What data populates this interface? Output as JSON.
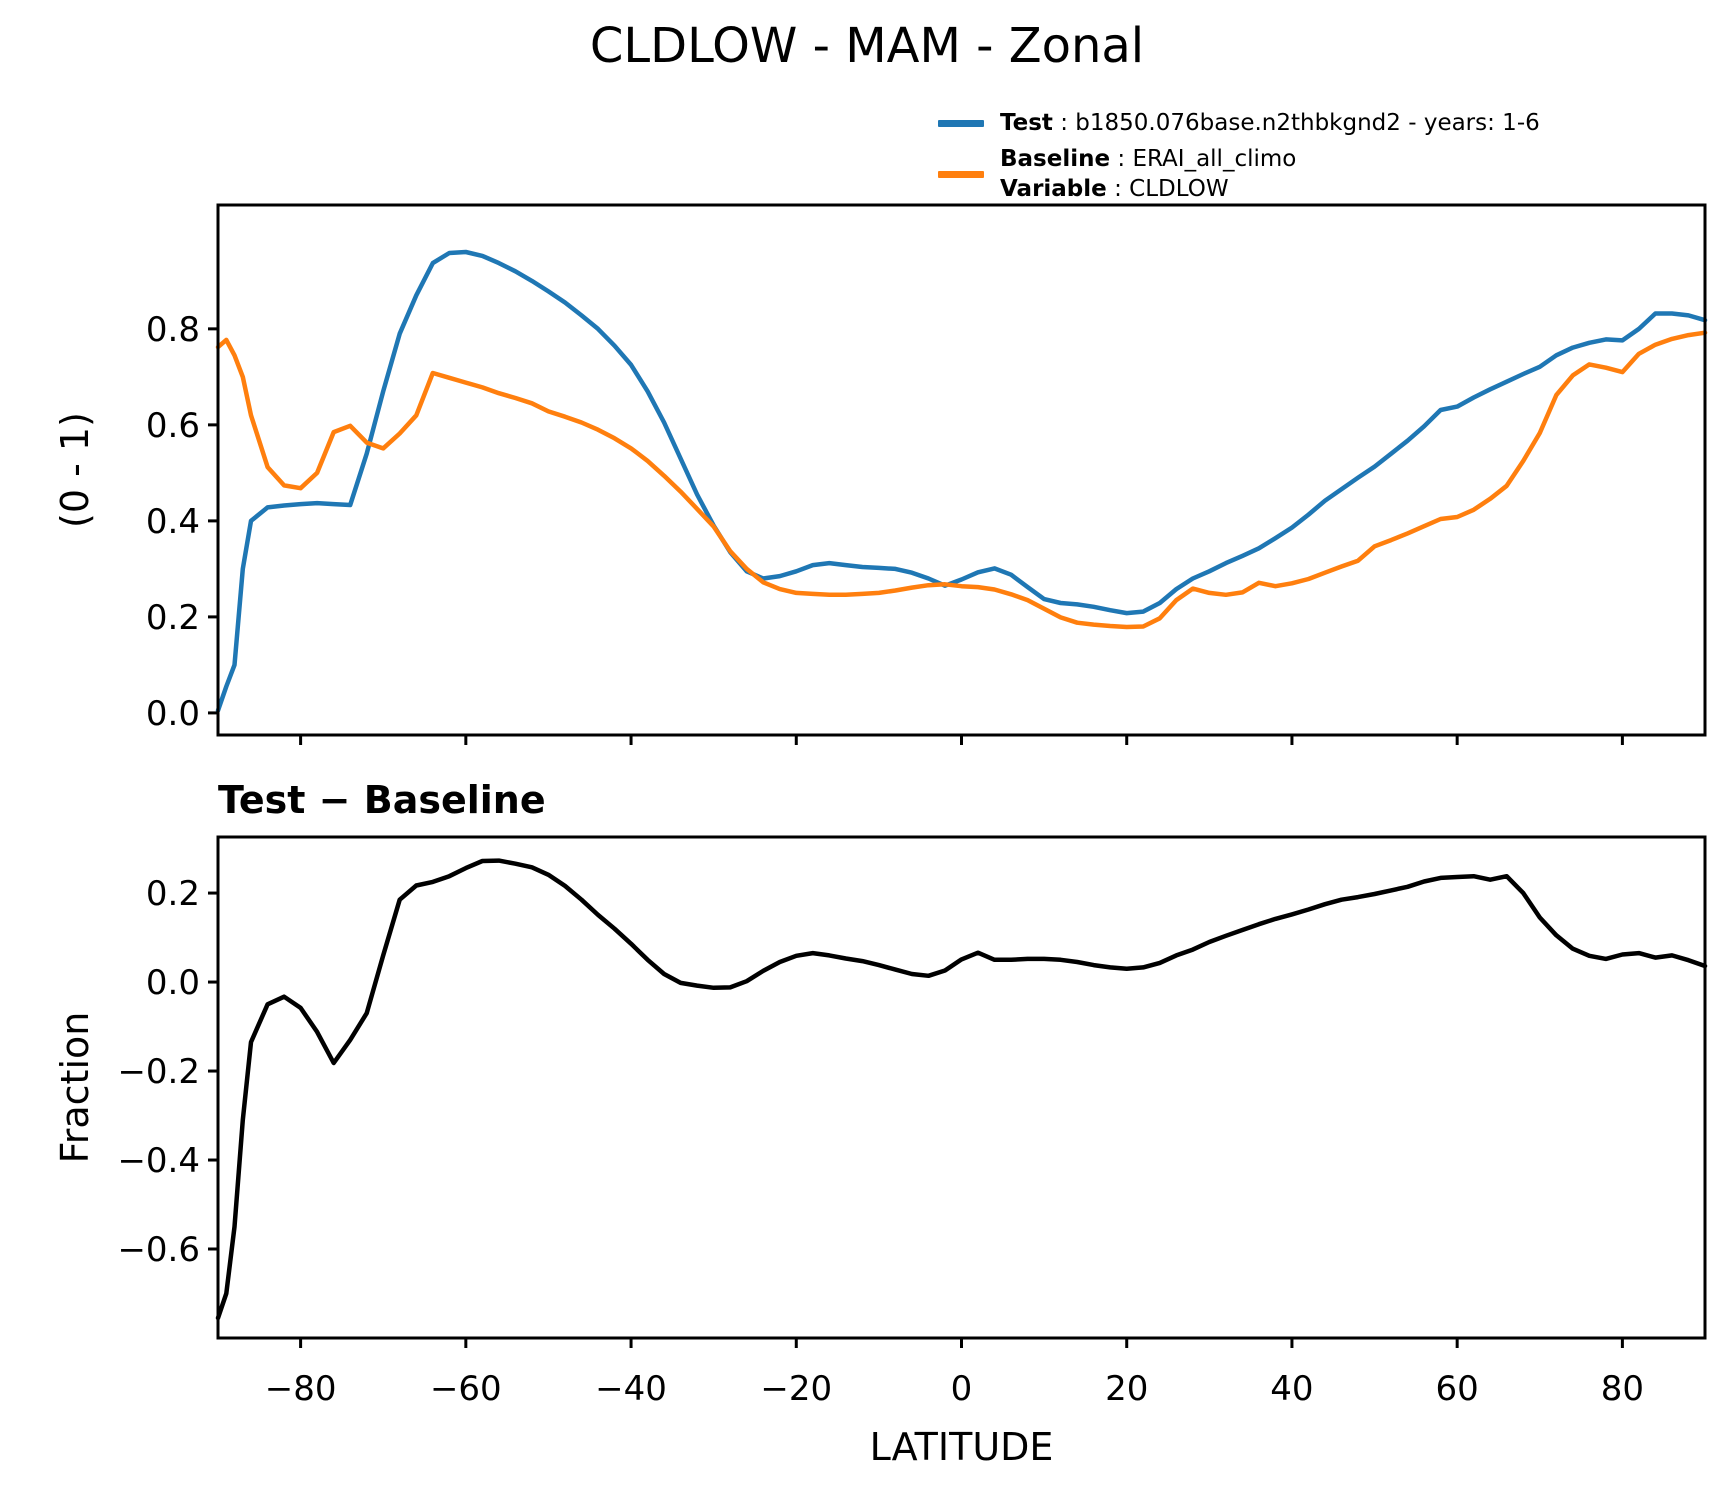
{
  "title": "CLDLOW - MAM - Zonal",
  "legend": {
    "position": "top-right",
    "entries": [
      {
        "label": "Test",
        "value": " : b1850.076base.n2thbkgnd2 - years: 1-6",
        "color": "#1f77b4"
      },
      {
        "label": "Baseline",
        "value": " : ERAI_all_climo",
        "color": "#ff7f0e"
      },
      {
        "label": "Variable",
        "value": " : CLDLOW"
      }
    ]
  },
  "chart_data": [
    {
      "type": "line",
      "name": "zonal-mean",
      "title": "",
      "xlabel": "",
      "ylabel": "(0 - 1)",
      "xlim": [
        -90,
        90
      ],
      "ylim": [
        -0.046,
        1.058
      ],
      "grid": false,
      "xticks": {
        "values": [
          -80,
          -60,
          -40,
          -20,
          0,
          20,
          40,
          60,
          80
        ],
        "labels": []
      },
      "yticks": {
        "values": [
          0.0,
          0.2,
          0.4,
          0.6,
          0.8
        ],
        "labels": [
          "0.0",
          "0.2",
          "0.4",
          "0.6",
          "0.8"
        ]
      },
      "x": [
        -90,
        -89,
        -88,
        -87,
        -86,
        -84,
        -82,
        -80,
        -78,
        -76,
        -74,
        -72,
        -70,
        -68,
        -66,
        -64,
        -62,
        -60,
        -58,
        -56,
        -54,
        -52,
        -50,
        -48,
        -46,
        -44,
        -42,
        -40,
        -38,
        -36,
        -34,
        -32,
        -30,
        -28,
        -26,
        -24,
        -22,
        -20,
        -18,
        -16,
        -14,
        -12,
        -10,
        -8,
        -6,
        -4,
        -2,
        0,
        2,
        4,
        6,
        8,
        10,
        12,
        14,
        16,
        18,
        20,
        22,
        24,
        26,
        28,
        30,
        32,
        34,
        36,
        38,
        40,
        42,
        44,
        46,
        48,
        50,
        52,
        54,
        56,
        58,
        60,
        62,
        64,
        66,
        68,
        70,
        72,
        74,
        76,
        78,
        80,
        82,
        84,
        86,
        88,
        90
      ],
      "series": [
        {
          "name": "Test",
          "color": "#1f77b4",
          "values": [
            0.005,
            0.055,
            0.1,
            0.3,
            0.4,
            0.428,
            0.432,
            0.435,
            0.437,
            0.435,
            0.433,
            0.54,
            0.67,
            0.79,
            0.87,
            0.937,
            0.958,
            0.96,
            0.952,
            0.937,
            0.92,
            0.9,
            0.878,
            0.855,
            0.828,
            0.8,
            0.765,
            0.725,
            0.67,
            0.605,
            0.53,
            0.455,
            0.39,
            0.335,
            0.295,
            0.28,
            0.285,
            0.295,
            0.308,
            0.312,
            0.308,
            0.304,
            0.302,
            0.3,
            0.292,
            0.28,
            0.265,
            0.278,
            0.293,
            0.301,
            0.288,
            0.262,
            0.237,
            0.229,
            0.226,
            0.221,
            0.214,
            0.208,
            0.211,
            0.229,
            0.258,
            0.28,
            0.295,
            0.312,
            0.327,
            0.343,
            0.364,
            0.386,
            0.413,
            0.442,
            0.466,
            0.49,
            0.513,
            0.54,
            0.567,
            0.597,
            0.631,
            0.638,
            0.657,
            0.674,
            0.69,
            0.706,
            0.721,
            0.745,
            0.761,
            0.771,
            0.778,
            0.776,
            0.8,
            0.832,
            0.832,
            0.828,
            0.818
          ]
        },
        {
          "name": "Baseline",
          "color": "#ff7f0e",
          "values": [
            0.762,
            0.777,
            0.745,
            0.7,
            0.62,
            0.512,
            0.474,
            0.468,
            0.5,
            0.585,
            0.598,
            0.563,
            0.551,
            0.582,
            0.62,
            0.708,
            0.698,
            0.688,
            0.678,
            0.666,
            0.656,
            0.645,
            0.628,
            0.617,
            0.605,
            0.59,
            0.572,
            0.551,
            0.525,
            0.494,
            0.461,
            0.425,
            0.388,
            0.337,
            0.3,
            0.272,
            0.258,
            0.25,
            0.248,
            0.246,
            0.246,
            0.248,
            0.25,
            0.255,
            0.261,
            0.266,
            0.268,
            0.264,
            0.262,
            0.257,
            0.247,
            0.235,
            0.217,
            0.199,
            0.188,
            0.184,
            0.181,
            0.179,
            0.18,
            0.197,
            0.235,
            0.259,
            0.25,
            0.246,
            0.251,
            0.271,
            0.264,
            0.27,
            0.279,
            0.292,
            0.305,
            0.317,
            0.347,
            0.36,
            0.374,
            0.389,
            0.404,
            0.408,
            0.423,
            0.446,
            0.473,
            0.525,
            0.583,
            0.662,
            0.703,
            0.726,
            0.719,
            0.71,
            0.748,
            0.767,
            0.779,
            0.787,
            0.792
          ]
        }
      ]
    },
    {
      "type": "line",
      "name": "difference",
      "title": "Test − Baseline",
      "xlabel": "LATITUDE",
      "ylabel": "Fraction",
      "xlim": [
        -90,
        90
      ],
      "ylim": [
        -0.8,
        0.326
      ],
      "grid": false,
      "xticks": {
        "values": [
          -80,
          -60,
          -40,
          -20,
          0,
          20,
          40,
          60,
          80
        ],
        "labels": [
          "−80",
          "−60",
          "−40",
          "−20",
          "0",
          "20",
          "40",
          "60",
          "80"
        ]
      },
      "yticks": {
        "values": [
          0.2,
          0.0,
          -0.2,
          -0.4,
          -0.6
        ],
        "labels": [
          "0.2",
          "0.0",
          "−0.2",
          "−0.4",
          "−0.6"
        ]
      },
      "x": [
        -90,
        -89,
        -88,
        -87,
        -86,
        -84,
        -82,
        -80,
        -78,
        -76,
        -74,
        -72,
        -70,
        -68,
        -66,
        -64,
        -62,
        -60,
        -58,
        -56,
        -54,
        -52,
        -50,
        -48,
        -46,
        -44,
        -42,
        -40,
        -38,
        -36,
        -34,
        -32,
        -30,
        -28,
        -26,
        -24,
        -22,
        -20,
        -18,
        -16,
        -14,
        -12,
        -10,
        -8,
        -6,
        -4,
        -2,
        0,
        2,
        4,
        6,
        8,
        10,
        12,
        14,
        16,
        18,
        20,
        22,
        24,
        26,
        28,
        30,
        32,
        34,
        36,
        38,
        40,
        42,
        44,
        46,
        48,
        50,
        52,
        54,
        56,
        58,
        60,
        62,
        64,
        66,
        68,
        70,
        72,
        74,
        76,
        78,
        80,
        82,
        84,
        86,
        88,
        90
      ],
      "series": [
        {
          "name": "Test minus Baseline",
          "color": "#000000",
          "values": [
            -0.755,
            -0.7,
            -0.55,
            -0.31,
            -0.135,
            -0.05,
            -0.033,
            -0.058,
            -0.112,
            -0.182,
            -0.13,
            -0.07,
            0.06,
            0.185,
            0.217,
            0.225,
            0.238,
            0.256,
            0.272,
            0.273,
            0.266,
            0.258,
            0.241,
            0.216,
            0.185,
            0.151,
            0.12,
            0.086,
            0.05,
            0.018,
            -0.002,
            -0.008,
            -0.013,
            -0.012,
            0.002,
            0.025,
            0.045,
            0.059,
            0.065,
            0.06,
            0.053,
            0.047,
            0.038,
            0.028,
            0.018,
            0.014,
            0.026,
            0.051,
            0.066,
            0.05,
            0.05,
            0.052,
            0.052,
            0.05,
            0.045,
            0.038,
            0.033,
            0.03,
            0.033,
            0.043,
            0.06,
            0.073,
            0.09,
            0.104,
            0.117,
            0.13,
            0.142,
            0.152,
            0.163,
            0.175,
            0.185,
            0.191,
            0.198,
            0.206,
            0.214,
            0.226,
            0.234,
            0.236,
            0.238,
            0.23,
            0.238,
            0.2,
            0.145,
            0.105,
            0.075,
            0.059,
            0.052,
            0.062,
            0.065,
            0.055,
            0.06,
            0.049,
            0.036
          ]
        }
      ]
    }
  ]
}
